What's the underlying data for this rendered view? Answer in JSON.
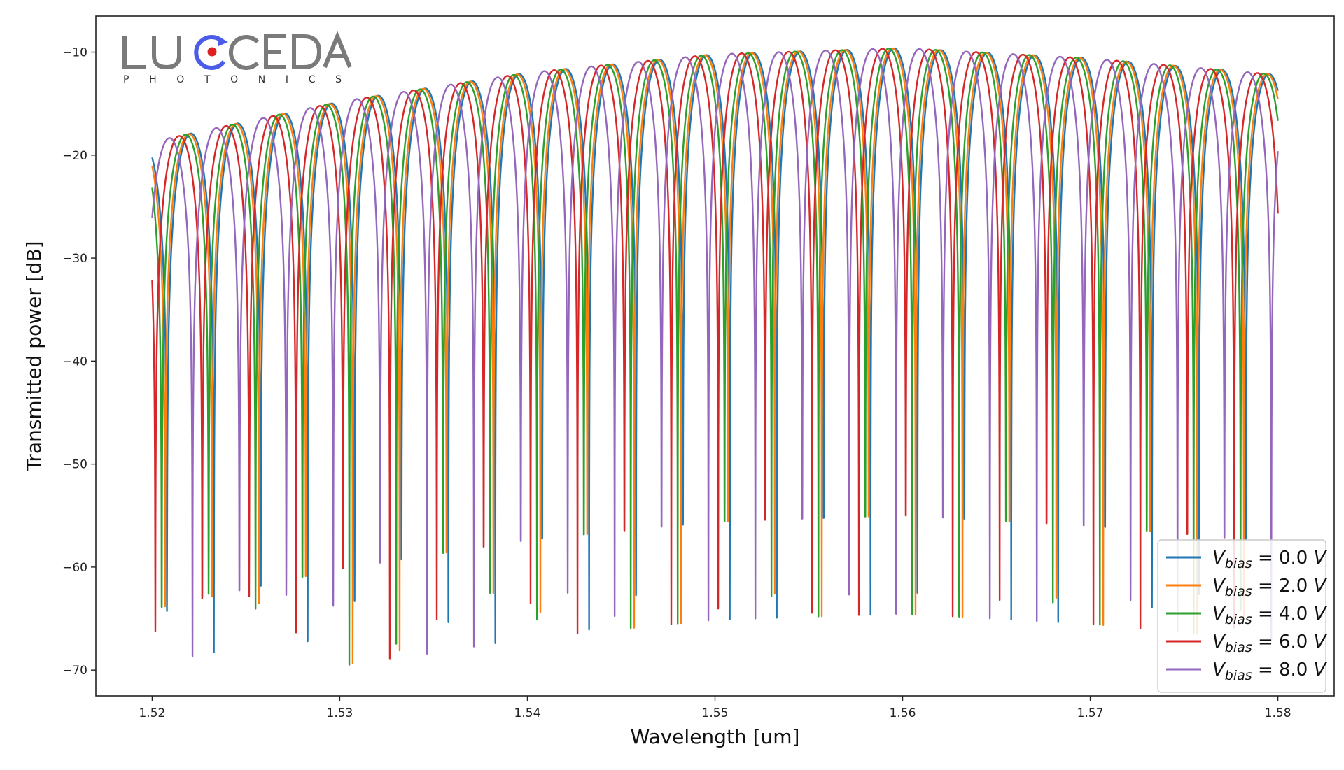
{
  "logo": {
    "brand": "LUCEDA",
    "tagline": "PHOTONICS",
    "colors": {
      "text": "#7a7a7a",
      "accent": "#4b5de8",
      "dot": "#e02020"
    }
  },
  "chart_data": {
    "type": "line",
    "title": "",
    "xlabel": "Wavelength [um]",
    "ylabel": "Transmitted power [dB]",
    "xlim": [
      1.517,
      1.583
    ],
    "ylim": [
      -72.5,
      -6.5
    ],
    "xticks": [
      1.52,
      1.53,
      1.54,
      1.55,
      1.56,
      1.57,
      1.58
    ],
    "xtick_labels": [
      "1.52",
      "1.53",
      "1.54",
      "1.55",
      "1.56",
      "1.57",
      "1.58"
    ],
    "yticks": [
      -10,
      -20,
      -30,
      -40,
      -50,
      -60,
      -70
    ],
    "ytick_labels": [
      "−10",
      "−20",
      "−30",
      "−40",
      "−50",
      "−60",
      "−70"
    ],
    "grid": false,
    "legend_position": "bottom-right",
    "x_range": [
      1.52,
      1.58
    ],
    "fsr_um": 0.0025,
    "envelope_peak_db": [
      {
        "x": 1.52,
        "y": -18.7
      },
      {
        "x": 1.53,
        "y": -14.8
      },
      {
        "x": 1.54,
        "y": -12.0
      },
      {
        "x": 1.55,
        "y": -10.2
      },
      {
        "x": 1.56,
        "y": -9.6
      },
      {
        "x": 1.57,
        "y": -10.6
      },
      {
        "x": 1.58,
        "y": -12.2
      }
    ],
    "series": [
      {
        "name": "V_bias = 0.0 V",
        "label": {
          "sym": "V",
          "sub": "bias",
          "eq": " = 0.0 ",
          "unit": "V"
        },
        "color": "#1f77b4",
        "null_wavelength_um": 1.52204
      },
      {
        "name": "V_bias = 2.0 V",
        "label": {
          "sym": "V",
          "sub": "bias",
          "eq": " = 2.0 ",
          "unit": "V"
        },
        "color": "#ff7f0e",
        "null_wavelength_um": 1.52194
      },
      {
        "name": "V_bias = 4.0 V",
        "label": {
          "sym": "V",
          "sub": "bias",
          "eq": " = 4.0 ",
          "unit": "V"
        },
        "color": "#2ca02c",
        "null_wavelength_um": 1.52176
      },
      {
        "name": "V_bias = 6.0 V",
        "label": {
          "sym": "V",
          "sub": "bias",
          "eq": " = 6.0 ",
          "unit": "V"
        },
        "color": "#d62728",
        "null_wavelength_um": 1.52142
      },
      {
        "name": "V_bias = 8.0 V",
        "label": {
          "sym": "V",
          "sub": "bias",
          "eq": " = 8.0 ",
          "unit": "V"
        },
        "color": "#9467bd",
        "null_wavelength_um": 1.5209
      }
    ]
  }
}
